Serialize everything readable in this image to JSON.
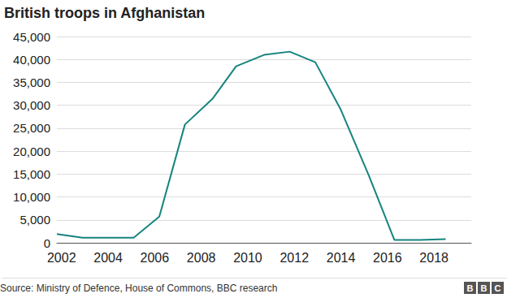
{
  "chart_data": {
    "type": "line",
    "title": "British troops in Afghanistan",
    "source": "Source: Ministry of Defence, House of Commons, BBC research",
    "logo": "BBC",
    "x": [
      2001.8,
      2002.9,
      2004,
      2005.1,
      2006.2,
      2007.3,
      2008.5,
      2009.5,
      2010.7,
      2011.8,
      2012.9,
      2014,
      2015.2,
      2016.3,
      2017.4,
      2018.5
    ],
    "values": [
      1900,
      1100,
      1100,
      1100,
      5700,
      25800,
      31500,
      38500,
      41000,
      41700,
      39400,
      29000,
      14700,
      600,
      600,
      800
    ],
    "color": "#15847e",
    "xlim": [
      2001.8,
      2019.6
    ],
    "xticks": [
      2002,
      2004,
      2006,
      2008,
      2010,
      2012,
      2014,
      2016,
      2018
    ],
    "ylim": [
      0,
      45000
    ],
    "yticks": [
      0,
      {
        "value": 5000,
        "label": "5,000"
      },
      {
        "value": 10000,
        "label": "10,000"
      },
      {
        "value": 15000,
        "label": "15,000"
      },
      {
        "value": 20000,
        "label": "20,000"
      },
      {
        "value": 25000,
        "label": "25,000"
      },
      {
        "value": 30000,
        "label": "30,000"
      },
      {
        "value": 35000,
        "label": "35,000"
      },
      {
        "value": 40000,
        "label": "40,000"
      },
      {
        "value": 45000,
        "label": "45,000"
      }
    ],
    "grid": true
  }
}
